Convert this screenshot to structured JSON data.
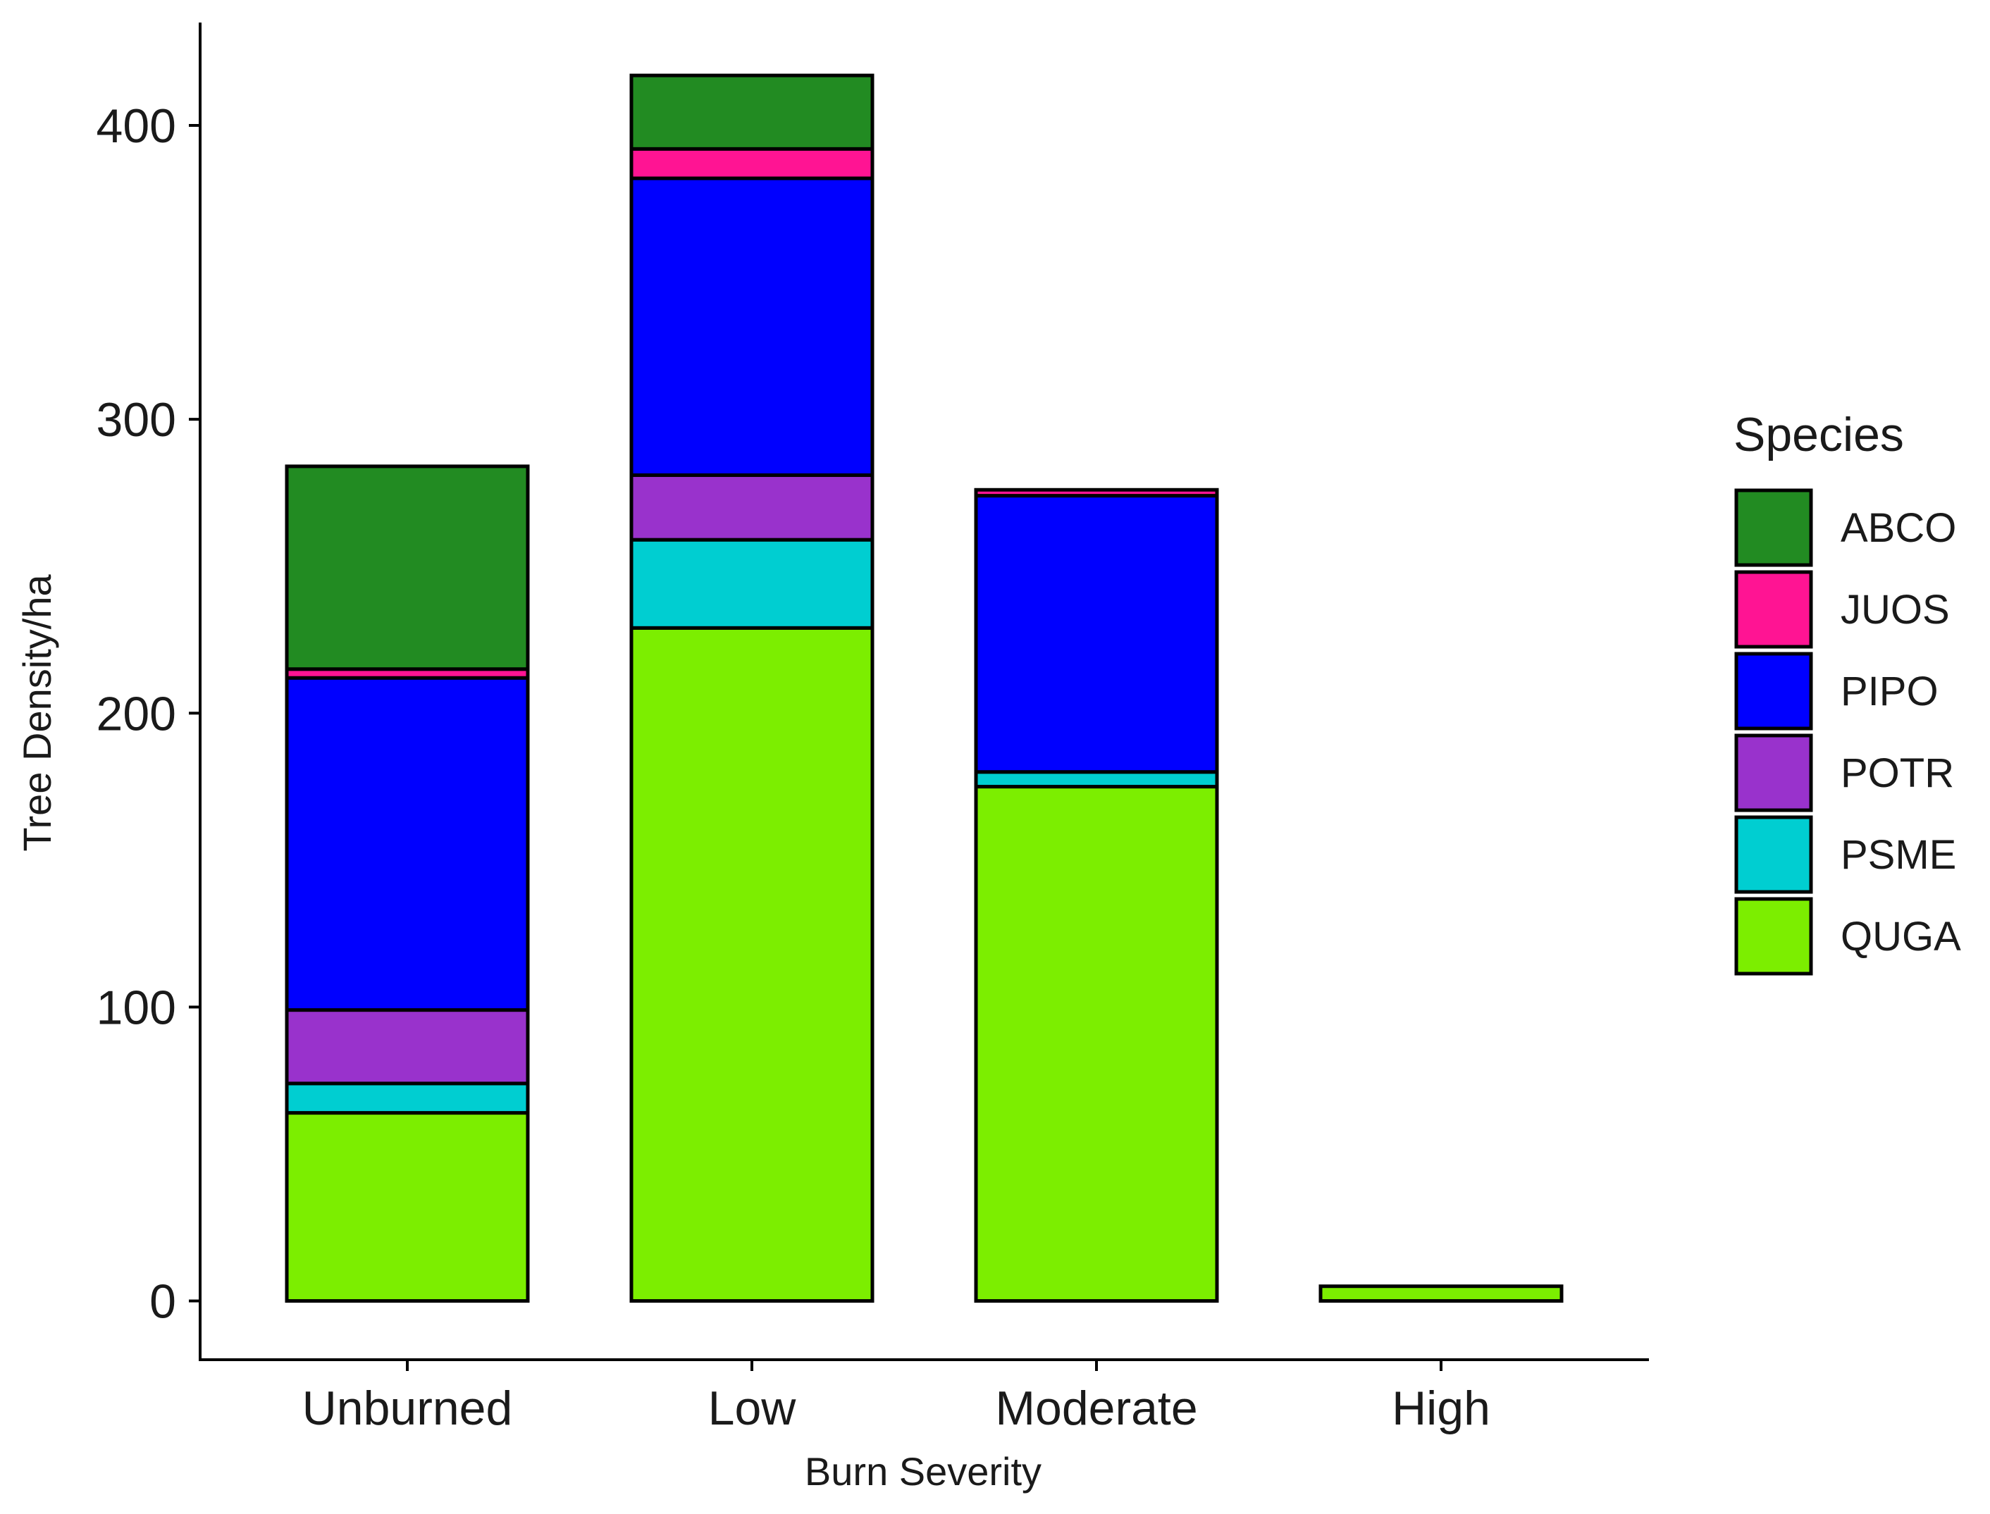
{
  "chart_data": {
    "type": "bar",
    "stacked": true,
    "title": "",
    "xlabel": "Burn Severity",
    "ylabel": "Tree Density/ha",
    "ylim": [
      -20,
      435
    ],
    "yticks": [
      0,
      100,
      200,
      300,
      400
    ],
    "categories": [
      "Unburned",
      "Low",
      "Moderate",
      "High"
    ],
    "legend": {
      "title": "Species",
      "position": "right"
    },
    "series": [
      {
        "name": "QUGA",
        "color": "#7CEE00",
        "values": [
          64,
          229,
          175,
          5
        ]
      },
      {
        "name": "PSME",
        "color": "#00CED1",
        "values": [
          10,
          30,
          5,
          0
        ]
      },
      {
        "name": "POTR",
        "color": "#9932CC",
        "values": [
          25,
          22,
          0,
          0
        ]
      },
      {
        "name": "PIPO",
        "color": "#0000FF",
        "values": [
          113,
          101,
          94,
          0
        ]
      },
      {
        "name": "JUOS",
        "color": "#FF1493",
        "values": [
          3,
          10,
          2,
          0
        ]
      },
      {
        "name": "ABCO",
        "color": "#228B22",
        "values": [
          69,
          25,
          0,
          0
        ]
      }
    ],
    "legend_order": [
      "ABCO",
      "JUOS",
      "PIPO",
      "POTR",
      "PSME",
      "QUGA"
    ]
  }
}
